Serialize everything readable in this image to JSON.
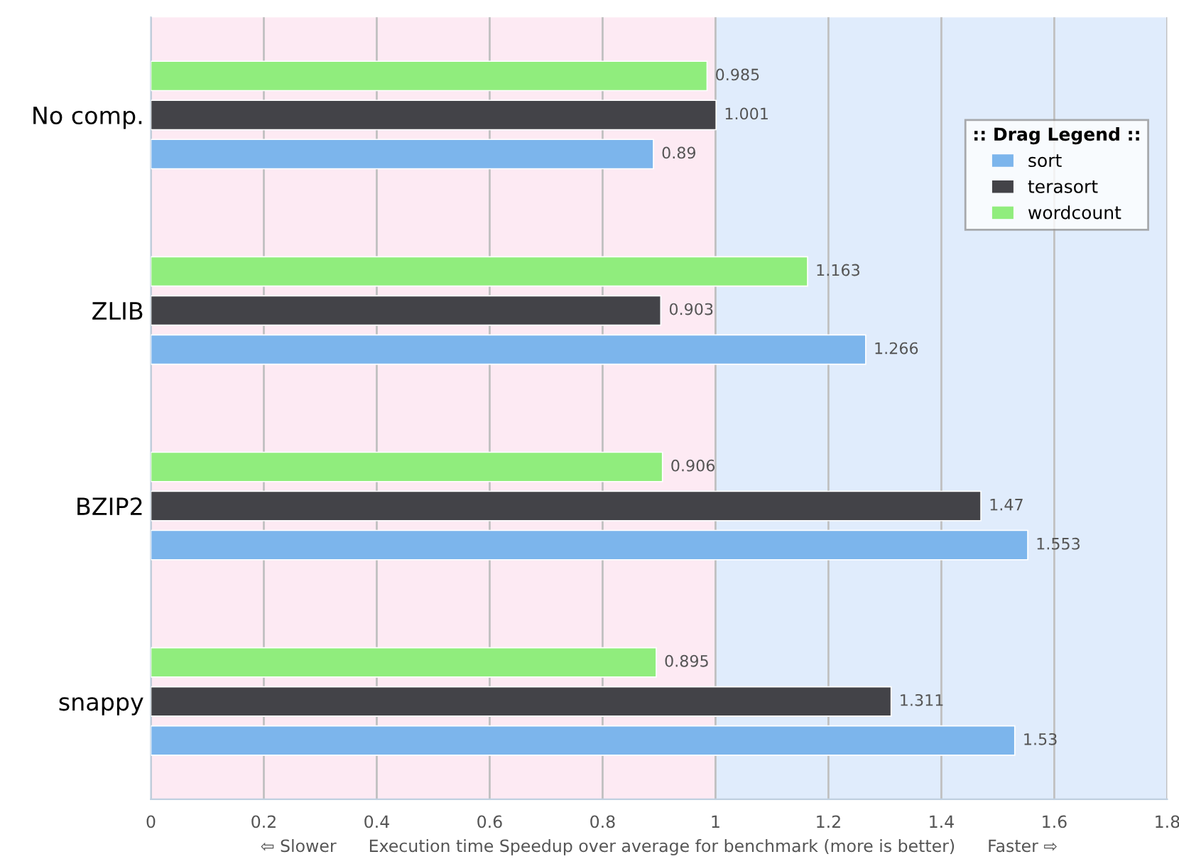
{
  "chart_data": {
    "type": "bar",
    "orientation": "horizontal",
    "categories": [
      "No comp.",
      "ZLIB",
      "BZIP2",
      "snappy"
    ],
    "series": [
      {
        "name": "sort",
        "color": "#7cb5ec",
        "values": [
          0.89,
          1.266,
          1.553,
          1.53
        ]
      },
      {
        "name": "terasort",
        "color": "#434348",
        "values": [
          1.001,
          0.903,
          1.47,
          1.311
        ]
      },
      {
        "name": "wordcount",
        "color": "#90ed7d",
        "values": [
          0.985,
          1.163,
          0.906,
          0.895
        ]
      }
    ],
    "xlabel": "⇦ Slower      Execution time Speedup over average for benchmark (more is better)      Faster ⇨",
    "legend_title": ":: Drag Legend ::",
    "xlim": [
      0,
      1.8
    ],
    "xticks": [
      0,
      0.2,
      0.4,
      0.6,
      0.8,
      1,
      1.2,
      1.4,
      1.6,
      1.8
    ],
    "bands": [
      {
        "axis": "x",
        "from": 0,
        "to": 1,
        "color": "#fdeaf3"
      },
      {
        "axis": "x",
        "from": 1,
        "to": 1.8,
        "color": "#e0ecfc"
      }
    ],
    "grid": "x",
    "legend": "top right",
    "data_labels": true
  }
}
